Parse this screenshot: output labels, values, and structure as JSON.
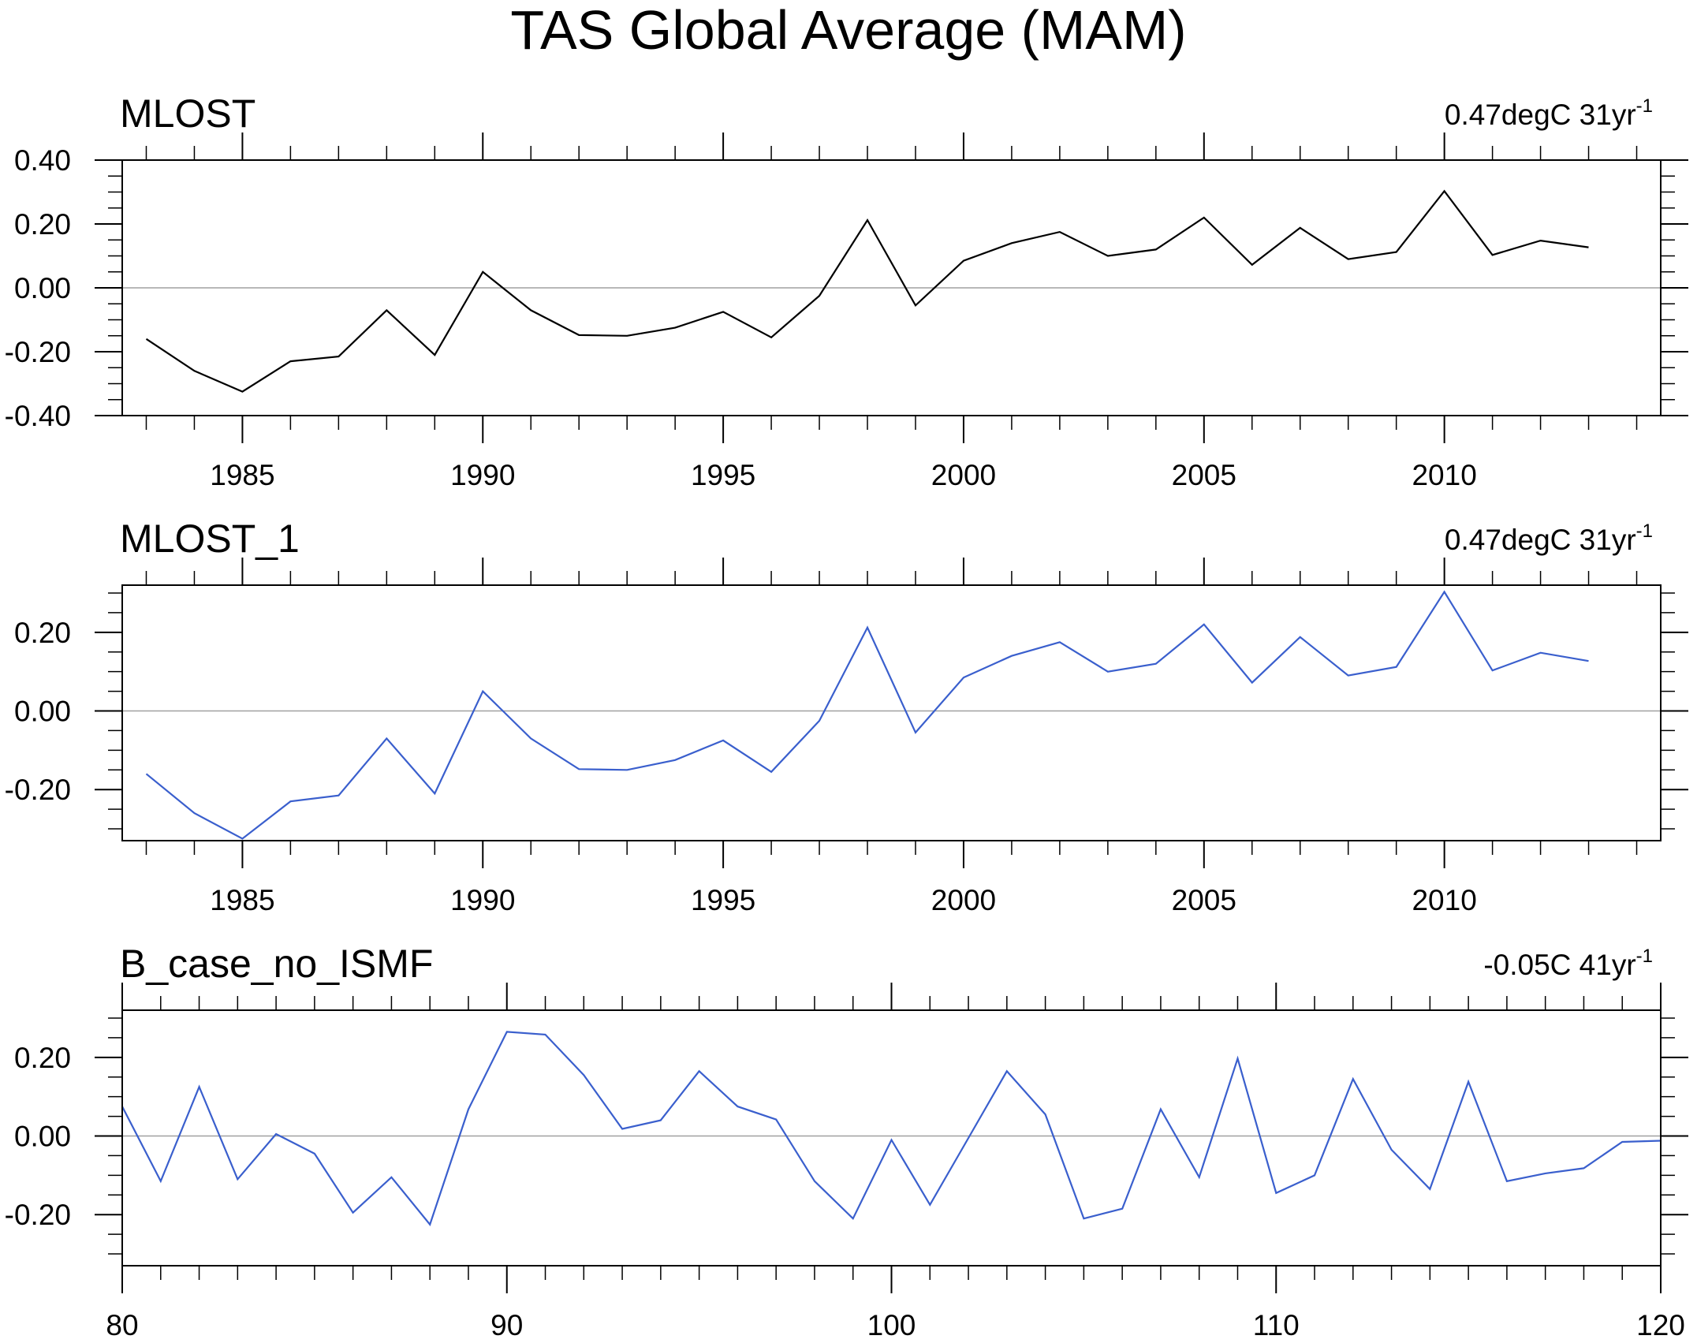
{
  "title": "TAS Global Average (MAM)",
  "chart_data": [
    {
      "type": "line",
      "title": "MLOST",
      "annotation": "0.47degC 31yr",
      "annotation_superscript": "-1",
      "line_color": "#000000",
      "x": [
        1983,
        1984,
        1985,
        1986,
        1987,
        1988,
        1989,
        1990,
        1991,
        1992,
        1993,
        1994,
        1995,
        1996,
        1997,
        1998,
        1999,
        2000,
        2001,
        2002,
        2003,
        2004,
        2005,
        2006,
        2007,
        2008,
        2009,
        2010,
        2011,
        2012,
        2013
      ],
      "values": [
        -0.16,
        -0.26,
        -0.325,
        -0.23,
        -0.215,
        -0.07,
        -0.21,
        0.05,
        -0.07,
        -0.148,
        -0.15,
        -0.125,
        -0.075,
        -0.155,
        -0.025,
        0.212,
        -0.055,
        0.085,
        0.14,
        0.175,
        0.1,
        0.12,
        0.22,
        0.072,
        0.188,
        0.09,
        0.112,
        0.303,
        0.103,
        0.148,
        0.127
      ],
      "xlim": [
        1982.5,
        2014.5
      ],
      "ylim": [
        -0.4,
        0.4
      ],
      "xticks_major": [
        1985,
        1990,
        1995,
        2000,
        2005,
        2010
      ],
      "xtick_labels": [
        "1985",
        "1990",
        "1995",
        "2000",
        "2005",
        "2010"
      ],
      "xticks_minor_step": 1,
      "yticks": [
        -0.4,
        -0.2,
        0.0,
        0.2,
        0.4
      ],
      "ytick_labels": [
        "-0.40",
        "-0.20",
        "0.00",
        "0.20",
        "0.40"
      ],
      "yticks_minor_step": 0.05,
      "reference_line": 0
    },
    {
      "type": "line",
      "title": "MLOST_1",
      "annotation": "0.47degC 31yr",
      "annotation_superscript": "-1",
      "line_color": "#3a5fcd",
      "x": [
        1983,
        1984,
        1985,
        1986,
        1987,
        1988,
        1989,
        1990,
        1991,
        1992,
        1993,
        1994,
        1995,
        1996,
        1997,
        1998,
        1999,
        2000,
        2001,
        2002,
        2003,
        2004,
        2005,
        2006,
        2007,
        2008,
        2009,
        2010,
        2011,
        2012,
        2013
      ],
      "values": [
        -0.16,
        -0.26,
        -0.325,
        -0.23,
        -0.215,
        -0.07,
        -0.21,
        0.05,
        -0.07,
        -0.148,
        -0.15,
        -0.125,
        -0.075,
        -0.155,
        -0.025,
        0.212,
        -0.055,
        0.085,
        0.14,
        0.175,
        0.1,
        0.12,
        0.22,
        0.072,
        0.188,
        0.09,
        0.112,
        0.303,
        0.103,
        0.148,
        0.127
      ],
      "xlim": [
        1982.5,
        2014.5
      ],
      "ylim": [
        -0.33,
        0.32
      ],
      "xticks_major": [
        1985,
        1990,
        1995,
        2000,
        2005,
        2010
      ],
      "xtick_labels": [
        "1985",
        "1990",
        "1995",
        "2000",
        "2005",
        "2010"
      ],
      "xticks_minor_step": 1,
      "yticks": [
        -0.2,
        0.0,
        0.2
      ],
      "ytick_labels": [
        "-0.20",
        "0.00",
        "0.20"
      ],
      "yticks_minor_step": 0.05,
      "reference_line": 0
    },
    {
      "type": "line",
      "title": "B_case_no_ISMF",
      "annotation": "-0.05C 41yr",
      "annotation_superscript": "-1",
      "line_color": "#3a5fcd",
      "x": [
        80,
        81,
        82,
        83,
        84,
        85,
        86,
        87,
        88,
        89,
        90,
        91,
        92,
        93,
        94,
        95,
        96,
        97,
        98,
        99,
        100,
        101,
        102,
        103,
        104,
        105,
        106,
        107,
        108,
        109,
        110,
        111,
        112,
        113,
        114,
        115,
        116,
        117,
        118,
        119,
        120
      ],
      "values": [
        0.075,
        -0.115,
        0.125,
        -0.11,
        0.005,
        -0.045,
        -0.195,
        -0.105,
        -0.225,
        0.068,
        0.265,
        0.258,
        0.155,
        0.018,
        0.04,
        0.165,
        0.075,
        0.042,
        -0.115,
        -0.21,
        -0.01,
        -0.175,
        -0.005,
        0.165,
        0.055,
        -0.21,
        -0.185,
        0.068,
        -0.105,
        0.197,
        -0.145,
        -0.1,
        0.145,
        -0.035,
        -0.135,
        0.138,
        -0.115,
        -0.095,
        -0.082,
        -0.015,
        -0.012
      ],
      "xlim": [
        80,
        120
      ],
      "ylim": [
        -0.33,
        0.32
      ],
      "xticks_major": [
        80,
        90,
        100,
        110,
        120
      ],
      "xtick_labels": [
        "80",
        "90",
        "100",
        "110",
        "120"
      ],
      "xticks_minor_step": 1,
      "yticks": [
        -0.2,
        0.0,
        0.2
      ],
      "ytick_labels": [
        "-0.20",
        "0.00",
        "0.20"
      ],
      "yticks_minor_step": 0.05,
      "reference_line": 0
    }
  ]
}
